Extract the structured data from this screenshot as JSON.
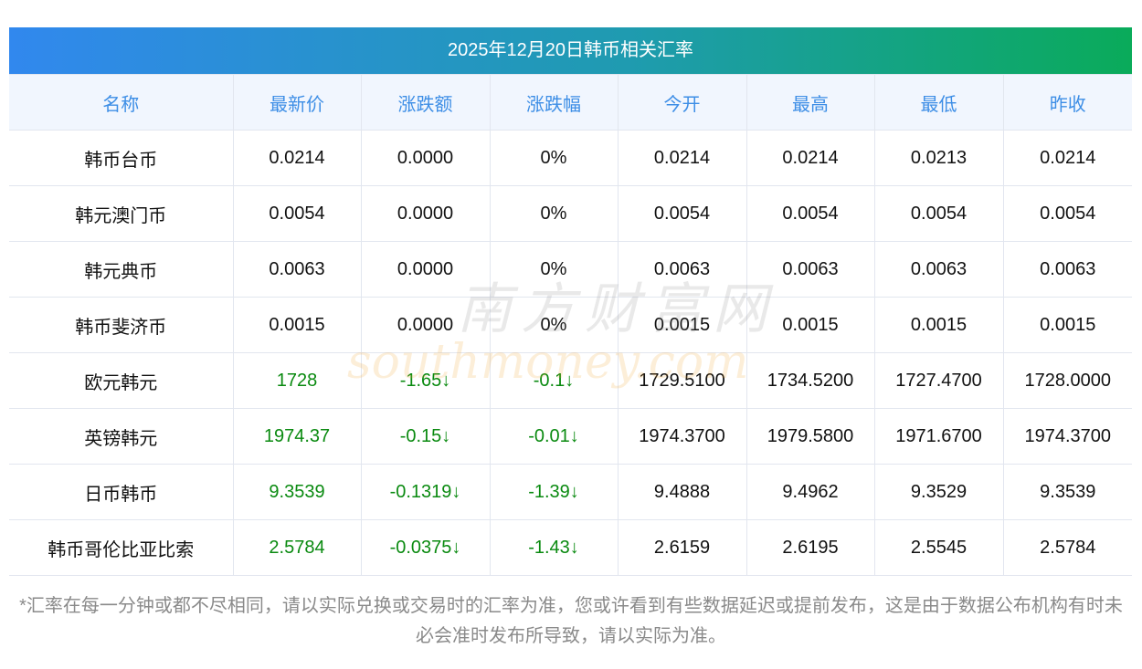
{
  "title": "2025年12月20日韩币相关汇率",
  "headers": [
    "名称",
    "最新价",
    "涨跌额",
    "涨跌幅",
    "今开",
    "最高",
    "最低",
    "昨收"
  ],
  "rows": [
    {
      "cells": [
        "韩币台币",
        "0.0214",
        "0.0000",
        "0%",
        "0.0214",
        "0.0214",
        "0.0213",
        "0.0214"
      ],
      "green": false
    },
    {
      "cells": [
        "韩元澳门币",
        "0.0054",
        "0.0000",
        "0%",
        "0.0054",
        "0.0054",
        "0.0054",
        "0.0054"
      ],
      "green": false
    },
    {
      "cells": [
        "韩元典币",
        "0.0063",
        "0.0000",
        "0%",
        "0.0063",
        "0.0063",
        "0.0063",
        "0.0063"
      ],
      "green": false
    },
    {
      "cells": [
        "韩币斐济币",
        "0.0015",
        "0.0000",
        "0%",
        "0.0015",
        "0.0015",
        "0.0015",
        "0.0015"
      ],
      "green": false
    },
    {
      "cells": [
        "欧元韩元",
        "1728",
        "-1.65↓",
        "-0.1↓",
        "1729.5100",
        "1734.5200",
        "1727.4700",
        "1728.0000"
      ],
      "green": true
    },
    {
      "cells": [
        "英镑韩元",
        "1974.37",
        "-0.15↓",
        "-0.01↓",
        "1974.3700",
        "1979.5800",
        "1971.6700",
        "1974.3700"
      ],
      "green": true
    },
    {
      "cells": [
        "日币韩币",
        "9.3539",
        "-0.1319↓",
        "-1.39↓",
        "9.4888",
        "9.4962",
        "9.3529",
        "9.3539"
      ],
      "green": true
    },
    {
      "cells": [
        "韩币哥伦比亚比索",
        "2.5784",
        "-0.0375↓",
        "-1.43↓",
        "2.6159",
        "2.6195",
        "2.5545",
        "2.5784"
      ],
      "green": true
    }
  ],
  "watermark": {
    "cn": "南方财富网",
    "en": "southmoney.com"
  },
  "note": "*汇率在每一分钟或都不尽相同，请以实际兑换或交易时的汇率为准，您或许看到有些数据延迟或提前发布，这是由于数据公布机构有时未必会准时发布所导致，请以实际为准。",
  "colors": {
    "down": "#0a8a10",
    "header_text": "#3d8ee6"
  }
}
